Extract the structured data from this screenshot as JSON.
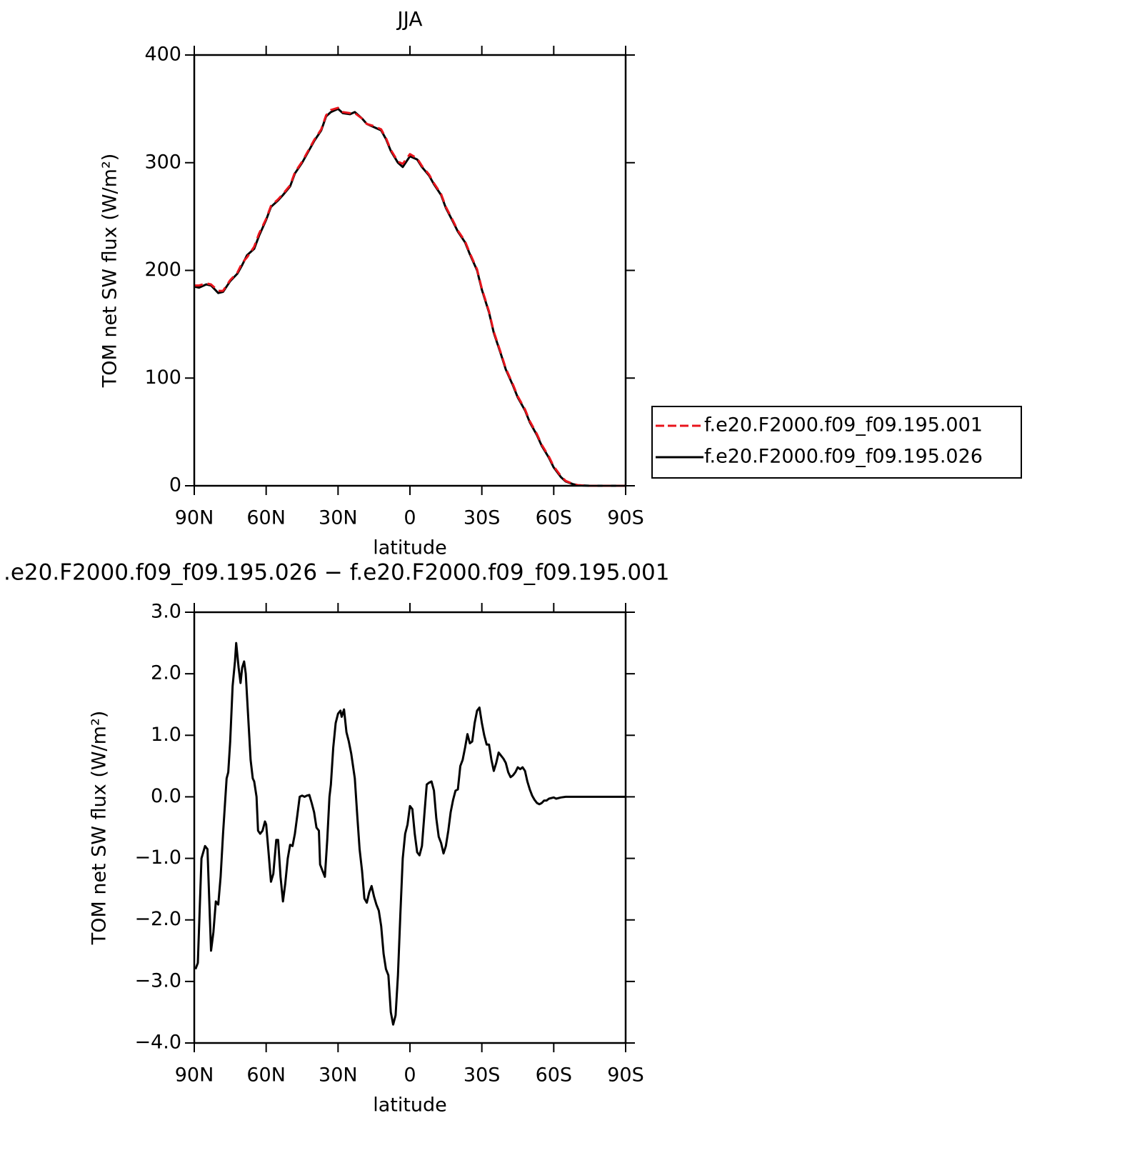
{
  "chart_data": [
    {
      "type": "line",
      "title": "JJA",
      "xlabel": "latitude",
      "ylabel": "TOM net SW flux (W/m²)",
      "xlim": [
        90,
        -90
      ],
      "ylim": [
        0,
        400
      ],
      "xticks": [
        {
          "value": 90,
          "label": "90N"
        },
        {
          "value": 60,
          "label": "60N"
        },
        {
          "value": 30,
          "label": "30N"
        },
        0,
        {
          "value": -30,
          "label": "30S"
        },
        {
          "value": -60,
          "label": "60S"
        },
        {
          "value": -90,
          "label": "90S"
        }
      ],
      "yticks": [
        0,
        100,
        200,
        300,
        400
      ],
      "legend": "outside right",
      "x": [
        90,
        88,
        85,
        83,
        80,
        78,
        75,
        72,
        70,
        68,
        65,
        63,
        60,
        58,
        55,
        53,
        50,
        48,
        45,
        42,
        40,
        37,
        35,
        33,
        30,
        28,
        25,
        23,
        20,
        18,
        15,
        12,
        10,
        8,
        5,
        3,
        0,
        -3,
        -5,
        -8,
        -10,
        -13,
        -15,
        -18,
        -20,
        -23,
        -25,
        -28,
        -30,
        -33,
        -35,
        -38,
        -40,
        -43,
        -45,
        -48,
        -50,
        -53,
        -55,
        -58,
        -60,
        -63,
        -65,
        -68,
        -70,
        -75,
        -80,
        -90
      ],
      "series": [
        {
          "name": "f.e20.F2000.f09_f09.195.001",
          "color": "#e8141c",
          "linestyle": "dashed",
          "values": [
            186,
            186,
            188,
            187,
            181,
            181,
            191,
            198,
            207,
            212,
            222,
            234,
            248,
            260,
            266,
            271,
            279,
            291,
            301,
            313,
            321,
            331,
            344,
            349,
            351,
            347,
            346,
            346,
            341,
            336,
            334,
            331,
            323,
            312,
            301,
            299,
            308,
            304,
            297,
            289,
            281,
            271,
            259,
            246,
            237,
            227,
            216,
            201,
            183,
            162,
            143,
            123,
            109,
            94,
            83,
            71,
            60,
            48,
            38,
            27,
            18,
            9,
            4.5,
            1.8,
            0.6,
            0,
            0,
            0
          ]
        },
        {
          "name": "f.e20.F2000.f09_f09.195.026",
          "color": "#000000",
          "linestyle": "solid",
          "values": [
            185,
            184,
            187,
            186,
            179,
            180,
            190,
            197,
            205,
            214,
            220,
            232,
            247,
            259,
            265,
            270,
            278,
            290,
            300,
            312,
            320,
            330,
            343,
            347,
            350,
            346,
            345,
            347,
            341,
            336,
            333,
            330,
            322,
            311,
            300,
            296,
            306,
            303,
            296,
            288,
            280,
            270,
            258,
            245,
            236,
            226,
            215,
            200,
            182,
            161,
            142,
            122,
            108,
            93,
            82,
            70,
            59,
            47,
            37,
            26,
            17,
            8,
            4,
            1.5,
            0.5,
            0,
            0,
            0
          ]
        }
      ]
    },
    {
      "type": "line",
      "title": ".e20.F2000.f09_f09.195.026 − f.e20.F2000.f09_f09.195.001",
      "xlabel": "latitude",
      "ylabel": "TOM net SW flux (W/m²)",
      "xlim": [
        90,
        -90
      ],
      "ylim": [
        -4,
        3
      ],
      "xticks": [
        {
          "value": 90,
          "label": "90N"
        },
        {
          "value": 60,
          "label": "60N"
        },
        {
          "value": 30,
          "label": "30N"
        },
        0,
        {
          "value": -30,
          "label": "30S"
        },
        {
          "value": -60,
          "label": "60S"
        },
        {
          "value": -90,
          "label": "90S"
        }
      ],
      "yticks": [
        {
          "value": -4,
          "label": "−4.0"
        },
        {
          "value": -3,
          "label": "−3.0"
        },
        {
          "value": -2,
          "label": "−2.0"
        },
        {
          "value": -1,
          "label": "−1.0"
        },
        {
          "value": 0,
          "label": "0.0"
        },
        {
          "value": 1,
          "label": "1.0"
        },
        {
          "value": 2,
          "label": "2.0"
        },
        {
          "value": 3,
          "label": "3.0"
        }
      ],
      "x": [
        89.5,
        88.5,
        87,
        85.5,
        84.5,
        83,
        82,
        81,
        80,
        79,
        78,
        76.5,
        75.8,
        75,
        74,
        73,
        72.5,
        71.5,
        70.7,
        70,
        69.2,
        68.5,
        67.5,
        66.5,
        65.6,
        65,
        64,
        63.4,
        62.5,
        61.5,
        60.5,
        60,
        59,
        58,
        57,
        55.8,
        55,
        54,
        53,
        52,
        51,
        50,
        49,
        48,
        47,
        46,
        45,
        44,
        43,
        42,
        41,
        40,
        39,
        38,
        37.5,
        36.5,
        35.5,
        34.5,
        33.6,
        33,
        32,
        31,
        30,
        29,
        28.5,
        27.5,
        26.5,
        25.5,
        24.5,
        23,
        22,
        21,
        20,
        19,
        18,
        17,
        16,
        15,
        14,
        13,
        12,
        11,
        10,
        9,
        8,
        7,
        6,
        5,
        4,
        3,
        2,
        1,
        0,
        -1,
        -2,
        -3,
        -4,
        -5,
        -6,
        -7,
        -8,
        -9,
        -10,
        -11,
        -12,
        -13,
        -14,
        -15,
        -16,
        -17,
        -18,
        -19,
        -20,
        -21,
        -22,
        -23,
        -24,
        -25,
        -26,
        -27,
        -28,
        -29,
        -30,
        -31,
        -32,
        -33,
        -34,
        -35,
        -36,
        -37,
        -38,
        -39,
        -40,
        -41,
        -42,
        -43,
        -44,
        -45,
        -46,
        -47,
        -48,
        -49,
        -50,
        -51,
        -52,
        -53,
        -54,
        -55,
        -56,
        -57,
        -58,
        -60,
        -61,
        -63,
        -65,
        -70,
        -80,
        -90
      ],
      "series": [
        {
          "color": "#000000",
          "values": [
            -2.8,
            -2.7,
            -1.0,
            -0.8,
            -0.85,
            -2.5,
            -2.2,
            -1.7,
            -1.75,
            -1.3,
            -0.6,
            0.3,
            0.4,
            0.9,
            1.8,
            2.2,
            2.5,
            2.1,
            1.85,
            2.1,
            2.2,
            2.0,
            1.3,
            0.6,
            0.3,
            0.25,
            0,
            -0.55,
            -0.6,
            -0.55,
            -0.4,
            -0.45,
            -0.9,
            -1.38,
            -1.25,
            -0.7,
            -0.7,
            -1.3,
            -1.7,
            -1.4,
            -1.0,
            -0.78,
            -0.8,
            -0.6,
            -0.3,
            0,
            0.02,
            0,
            0.02,
            0.03,
            -0.1,
            -0.25,
            -0.5,
            -0.55,
            -1.1,
            -1.2,
            -1.3,
            -0.7,
            0,
            0.2,
            0.8,
            1.2,
            1.35,
            1.4,
            1.3,
            1.42,
            1.05,
            0.9,
            0.7,
            0.3,
            -0.3,
            -0.85,
            -1.2,
            -1.65,
            -1.72,
            -1.55,
            -1.45,
            -1.62,
            -1.75,
            -1.85,
            -2.1,
            -2.55,
            -2.8,
            -2.9,
            -3.5,
            -3.7,
            -3.55,
            -2.9,
            -1.9,
            -1.0,
            -0.6,
            -0.45,
            -0.15,
            -0.2,
            -0.6,
            -0.9,
            -0.95,
            -0.8,
            -0.3,
            0.2,
            0.23,
            0.25,
            0.1,
            -0.35,
            -0.65,
            -0.75,
            -0.92,
            -0.8,
            -0.55,
            -0.25,
            -0.05,
            0.1,
            0.12,
            0.5,
            0.6,
            0.8,
            1.02,
            0.87,
            0.9,
            1.2,
            1.4,
            1.45,
            1.2,
            1.0,
            0.85,
            0.85,
            0.6,
            0.42,
            0.55,
            0.72,
            0.67,
            0.62,
            0.55,
            0.4,
            0.32,
            0.35,
            0.4,
            0.48,
            0.45,
            0.48,
            0.42,
            0.25,
            0.12,
            0.02,
            -0.05,
            -0.1,
            -0.12,
            -0.1,
            -0.06,
            -0.06,
            -0.03,
            -0.01,
            -0.03,
            -0.01,
            0,
            0,
            0,
            0
          ]
        }
      ]
    }
  ]
}
